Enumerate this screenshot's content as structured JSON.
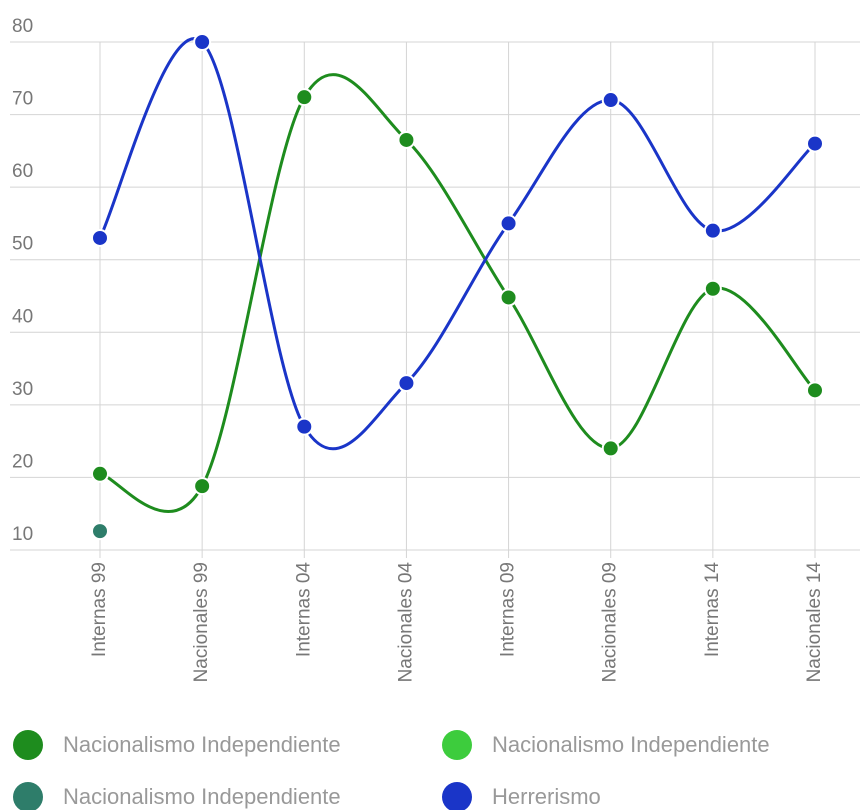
{
  "chart_data": {
    "type": "line",
    "categories": [
      "Internas 99",
      "Nacionales 99",
      "Internas 04",
      "Nacionales 04",
      "Internas 09",
      "Nacionales 09",
      "Internas 14",
      "Nacionales 14"
    ],
    "series": [
      {
        "name": "Nacionalismo Independiente",
        "color": "#1e8c1e",
        "values": [
          20.5,
          18.8,
          72.4,
          66.5,
          44.8,
          24,
          46,
          32
        ]
      },
      {
        "name": "Nacionalismo Independiente",
        "color": "#3dcc3d",
        "values": [
          null,
          null,
          null,
          null,
          null,
          null,
          null,
          null
        ]
      },
      {
        "name": "Nacionalismo Independiente",
        "color": "#2e7d6a",
        "values": [
          12.6,
          null,
          null,
          null,
          null,
          null,
          null,
          null
        ]
      },
      {
        "name": "Herrerismo",
        "color": "#1a35c8",
        "values": [
          53,
          80,
          27,
          33,
          55,
          72,
          54,
          66
        ]
      }
    ],
    "ylim": [
      10,
      80
    ],
    "yticks": [
      10,
      20,
      30,
      40,
      50,
      60,
      70,
      80
    ],
    "grid": true,
    "legend": "bottom"
  }
}
